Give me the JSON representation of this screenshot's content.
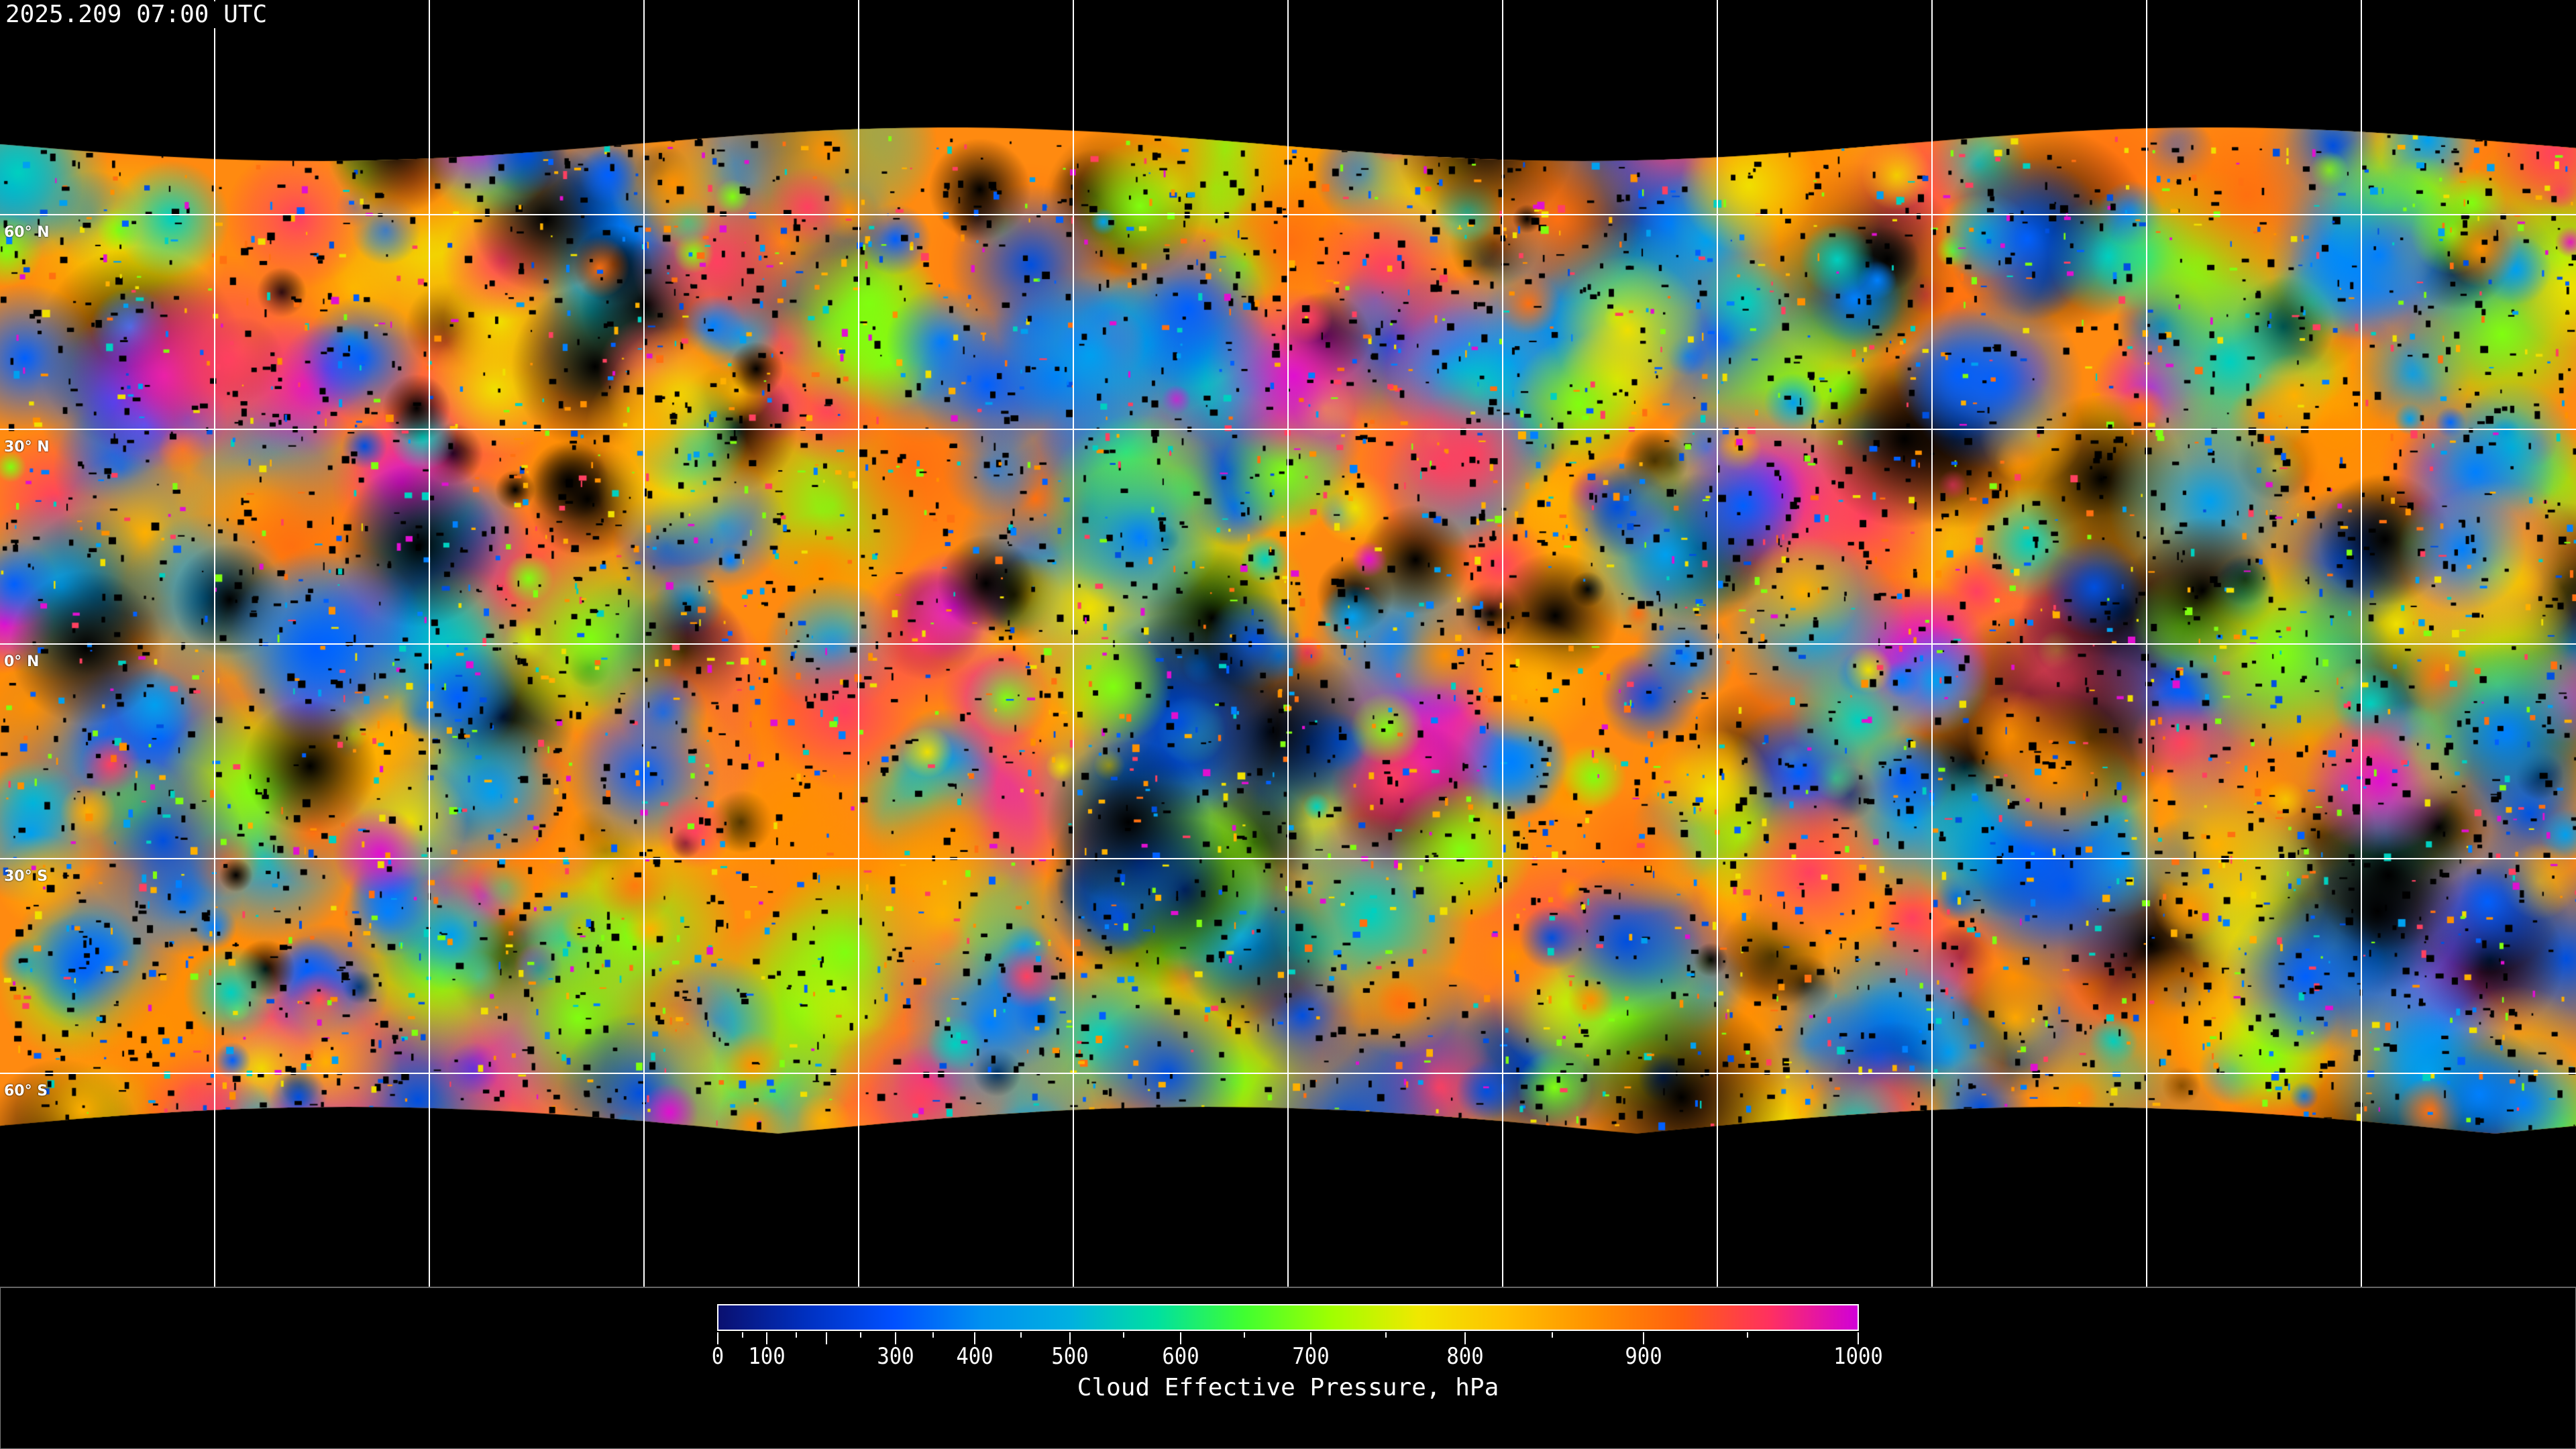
{
  "title": "2025.209 07:00 UTC",
  "map": {
    "projection": "equirectangular",
    "grid_spacing_deg": 30,
    "lat_labels": [
      {
        "lat": 60,
        "label": "60° N"
      },
      {
        "lat": 30,
        "label": "30° N"
      },
      {
        "lat": 0,
        "label": "0° N"
      },
      {
        "lat": -30,
        "label": "30° S"
      },
      {
        "lat": -60,
        "label": "60° S"
      }
    ],
    "no_data_color": "#000000",
    "coastline_color": "#ffffff"
  },
  "colorbar": {
    "title": "Cloud Effective Pressure, hPa",
    "min": 0,
    "max": 1000,
    "major_ticks": [
      {
        "value": 0,
        "label": "0"
      },
      {
        "value": 100,
        "label": "100"
      },
      {
        "value": 200,
        "label": ""
      },
      {
        "value": 300,
        "label": "300"
      },
      {
        "value": 400,
        "label": "400"
      },
      {
        "value": 500,
        "label": "500"
      },
      {
        "value": 600,
        "label": "600"
      },
      {
        "value": 700,
        "label": "700"
      },
      {
        "value": 800,
        "label": "800"
      },
      {
        "value": 900,
        "label": "900"
      },
      {
        "value": 1000,
        "label": "1000"
      }
    ],
    "minor_ticks": [
      50,
      150,
      250,
      350,
      450,
      550,
      650,
      750,
      850,
      950
    ],
    "colors": [
      "#0a1070",
      "#0030c0",
      "#0050ff",
      "#0090f0",
      "#00b0e0",
      "#00e0a0",
      "#40ff30",
      "#a0ff00",
      "#f0e800",
      "#ffc000",
      "#ff9000",
      "#ff6010",
      "#ff3060",
      "#d000d8"
    ]
  }
}
